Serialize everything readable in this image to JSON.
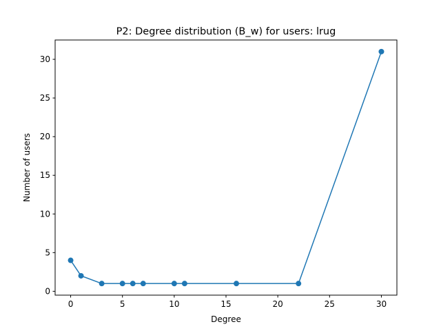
{
  "chart_data": {
    "type": "line",
    "title": "P2: Degree distribution (B_w) for users: lrug",
    "xlabel": "Degree",
    "ylabel": "Number of users",
    "xlim": [
      -1.5,
      31.5
    ],
    "ylim": [
      -0.5,
      32.5
    ],
    "xticks": [
      0,
      5,
      10,
      15,
      20,
      25,
      30
    ],
    "yticks": [
      0,
      5,
      10,
      15,
      20,
      25,
      30
    ],
    "grid": false,
    "series": [
      {
        "color": "#1f77b4",
        "marker": "circle",
        "x": [
          0,
          1,
          3,
          5,
          6,
          7,
          10,
          11,
          16,
          22,
          30
        ],
        "y": [
          4,
          2,
          1,
          1,
          1,
          1,
          1,
          1,
          1,
          1,
          31
        ]
      }
    ]
  }
}
